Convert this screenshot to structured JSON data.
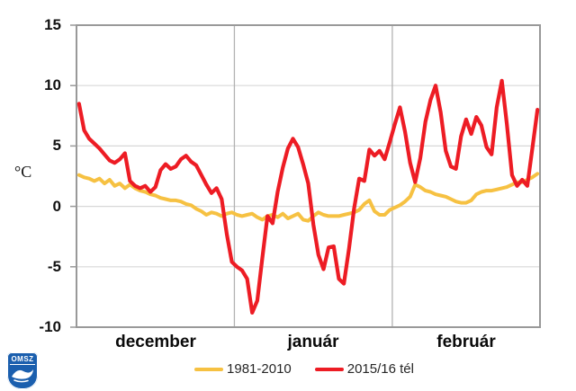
{
  "chart_data": {
    "type": "line",
    "title": "",
    "ylabel": "°C",
    "ylim": [
      -10,
      15
    ],
    "yticks": [
      15,
      10,
      5,
      0,
      -5,
      -10
    ],
    "grid": true,
    "legend_position": "bottom",
    "months": [
      {
        "label": "december",
        "days": 31
      },
      {
        "label": "január",
        "days": 31
      },
      {
        "label": "február",
        "days": 29
      }
    ],
    "colors": {
      "grid": "#d8d8d8",
      "border": "#999999",
      "separator": "#b2b2b2"
    },
    "series": [
      {
        "name": "1981-2010",
        "color": "#f6c142",
        "width": 4,
        "values": [
          2.6,
          2.4,
          2.3,
          2.1,
          2.3,
          1.9,
          2.2,
          1.7,
          1.9,
          1.5,
          1.8,
          1.5,
          1.3,
          1.2,
          1.0,
          0.9,
          0.7,
          0.6,
          0.5,
          0.5,
          0.4,
          0.2,
          0.1,
          -0.2,
          -0.4,
          -0.7,
          -0.5,
          -0.6,
          -0.8,
          -0.6,
          -0.5,
          -0.7,
          -0.8,
          -0.7,
          -0.6,
          -0.9,
          -1.1,
          -0.8,
          -0.7,
          -0.9,
          -0.6,
          -1.0,
          -0.8,
          -0.6,
          -1.1,
          -1.2,
          -0.8,
          -0.5,
          -0.7,
          -0.8,
          -0.8,
          -0.8,
          -0.7,
          -0.6,
          -0.5,
          -0.3,
          0.2,
          0.5,
          -0.4,
          -0.7,
          -0.7,
          -0.3,
          -0.1,
          0.1,
          0.4,
          0.8,
          1.8,
          1.6,
          1.3,
          1.2,
          1.0,
          0.9,
          0.8,
          0.6,
          0.4,
          0.3,
          0.3,
          0.5,
          1.0,
          1.2,
          1.3,
          1.3,
          1.4,
          1.5,
          1.6,
          1.8,
          2.0,
          2.0,
          2.2,
          2.4,
          2.7
        ]
      },
      {
        "name": "2015/16 tél",
        "color": "#ed1c24",
        "width": 4.2,
        "values": [
          8.5,
          6.3,
          5.6,
          5.2,
          4.8,
          4.3,
          3.8,
          3.6,
          3.9,
          4.4,
          2.1,
          1.7,
          1.5,
          1.7,
          1.2,
          1.6,
          3.0,
          3.5,
          3.1,
          3.3,
          3.9,
          4.2,
          3.7,
          3.4,
          2.6,
          1.8,
          1.1,
          1.5,
          0.6,
          -2.3,
          -4.6,
          -5.0,
          -5.3,
          -6.0,
          -8.8,
          -7.8,
          -4.2,
          -0.8,
          -1.4,
          1.2,
          3.2,
          4.8,
          5.6,
          4.9,
          3.5,
          1.9,
          -1.5,
          -4.0,
          -5.2,
          -3.4,
          -3.3,
          -6.0,
          -6.4,
          -3.5,
          -0.2,
          2.3,
          2.1,
          4.7,
          4.2,
          4.6,
          3.9,
          5.3,
          6.8,
          8.2,
          6.2,
          3.6,
          2.0,
          4.0,
          7.0,
          8.8,
          10.0,
          7.8,
          4.6,
          3.3,
          3.1,
          5.8,
          7.2,
          6.0,
          7.4,
          6.7,
          4.9,
          4.3,
          8.2,
          10.4,
          6.8,
          2.6,
          1.7,
          2.2,
          1.7,
          4.8,
          8.0
        ]
      }
    ]
  },
  "legend": {
    "item1": "1981-2010",
    "item2": "2015/16 tél"
  },
  "logo": {
    "text": "OMSZ",
    "color": "#1b5fae"
  }
}
